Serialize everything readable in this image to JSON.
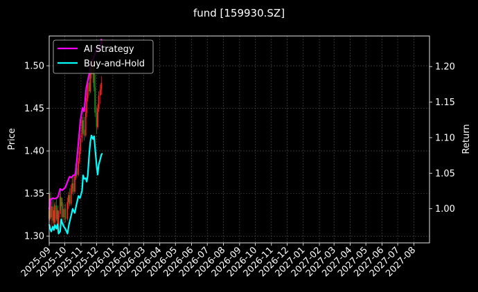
{
  "chart_data": {
    "type": "line",
    "title": "fund [159930.SZ]",
    "ylabel_left": "Price",
    "ylabel_right": "Return",
    "xlim": [
      "2025-09-01",
      "2027-08-31"
    ],
    "ylim_left": [
      1.292,
      1.535
    ],
    "ylim_right": [
      0.952,
      1.243
    ],
    "x_ticks": [
      "2025-09",
      "2025-10",
      "2025-11",
      "2025-12",
      "2026-01",
      "2026-02",
      "2026-03",
      "2026-04",
      "2026-05",
      "2026-06",
      "2026-07",
      "2026-08",
      "2026-09",
      "2026-10",
      "2026-11",
      "2026-12",
      "2027-01",
      "2027-02",
      "2027-03",
      "2027-04",
      "2027-05",
      "2027-06",
      "2027-07",
      "2027-08"
    ],
    "y_ticks_left": [
      "1.30",
      "1.35",
      "1.40",
      "1.45",
      "1.50"
    ],
    "y_ticks_right": [
      "1.00",
      "1.05",
      "1.10",
      "1.15",
      "1.20"
    ],
    "grid": true,
    "legend_position": "top-left",
    "background": "#000000",
    "colors": {
      "ai_strategy": "#ff00ff",
      "buy_and_hold": "#00ffff",
      "candle_up": "#ff2020",
      "candle_down": "#1f8f1f",
      "grid": "#555555"
    },
    "series": [
      {
        "name": "AI Strategy",
        "axis": "right",
        "color": "#ff00ff",
        "x": [
          "2025-09-01",
          "2025-09-04",
          "2025-09-08",
          "2025-09-11",
          "2025-09-15",
          "2025-09-18",
          "2025-09-22",
          "2025-09-26",
          "2025-10-02",
          "2025-10-06",
          "2025-10-10",
          "2025-10-14",
          "2025-10-17",
          "2025-10-21",
          "2025-10-24",
          "2025-10-28",
          "2025-10-31",
          "2025-11-04",
          "2025-11-07",
          "2025-11-11",
          "2025-11-14",
          "2025-11-18",
          "2025-11-21",
          "2025-11-25",
          "2025-11-28",
          "2025-12-01",
          "2025-12-03",
          "2025-12-05",
          "2025-12-08",
          "2025-12-10",
          "2025-12-12"
        ],
        "values": [
          0.999,
          1.013,
          1.015,
          1.014,
          1.015,
          1.017,
          1.028,
          1.026,
          1.03,
          1.038,
          1.045,
          1.044,
          1.047,
          1.048,
          1.068,
          1.1,
          1.125,
          1.142,
          1.137,
          1.17,
          1.18,
          1.194,
          1.207,
          1.212,
          1.218,
          1.226,
          1.228,
          1.221,
          1.224,
          1.238,
          1.232
        ]
      },
      {
        "name": "Buy-and-Hold",
        "axis": "right",
        "color": "#00ffff",
        "x": [
          "2025-09-01",
          "2025-09-03",
          "2025-09-05",
          "2025-09-08",
          "2025-09-10",
          "2025-09-12",
          "2025-09-15",
          "2025-09-17",
          "2025-09-19",
          "2025-09-22",
          "2025-09-24",
          "2025-09-26",
          "2025-09-29",
          "2025-10-02",
          "2025-10-06",
          "2025-10-09",
          "2025-10-13",
          "2025-10-16",
          "2025-10-20",
          "2025-10-23",
          "2025-10-27",
          "2025-10-30",
          "2025-11-03",
          "2025-11-05",
          "2025-11-07",
          "2025-11-10",
          "2025-11-12",
          "2025-11-14",
          "2025-11-17",
          "2025-11-19",
          "2025-11-21",
          "2025-11-24",
          "2025-11-26",
          "2025-11-28",
          "2025-12-01",
          "2025-12-03",
          "2025-12-05",
          "2025-12-08",
          "2025-12-10",
          "2025-12-12"
        ],
        "values": [
          0.978,
          0.972,
          0.968,
          0.975,
          0.97,
          0.977,
          0.972,
          0.978,
          0.965,
          0.968,
          0.985,
          0.98,
          0.975,
          0.972,
          0.965,
          0.978,
          0.99,
          1.0,
          0.994,
          1.005,
          1.018,
          1.015,
          1.025,
          1.047,
          1.042,
          1.043,
          1.038,
          1.047,
          1.08,
          1.095,
          1.103,
          1.098,
          1.102,
          1.085,
          1.06,
          1.048,
          1.062,
          1.07,
          1.076,
          1.078
        ]
      }
    ],
    "candlesticks": {
      "axis": "left",
      "ohlc": [
        [
          "2025-09-01",
          1.33,
          1.345,
          1.315,
          1.32
        ],
        [
          "2025-09-02",
          1.32,
          1.35,
          1.318,
          1.345
        ],
        [
          "2025-09-04",
          1.345,
          1.352,
          1.32,
          1.322
        ],
        [
          "2025-09-05",
          1.322,
          1.34,
          1.31,
          1.335
        ],
        [
          "2025-09-08",
          1.335,
          1.345,
          1.315,
          1.318
        ],
        [
          "2025-09-09",
          1.318,
          1.334,
          1.312,
          1.33
        ],
        [
          "2025-09-11",
          1.33,
          1.338,
          1.313,
          1.316
        ],
        [
          "2025-09-12",
          1.316,
          1.34,
          1.314,
          1.336
        ],
        [
          "2025-09-15",
          1.336,
          1.344,
          1.318,
          1.32
        ],
        [
          "2025-09-16",
          1.32,
          1.333,
          1.31,
          1.33
        ],
        [
          "2025-09-18",
          1.33,
          1.336,
          1.305,
          1.308
        ],
        [
          "2025-09-19",
          1.308,
          1.33,
          1.305,
          1.326
        ],
        [
          "2025-09-22",
          1.326,
          1.35,
          1.322,
          1.346
        ],
        [
          "2025-09-23",
          1.346,
          1.354,
          1.33,
          1.335
        ],
        [
          "2025-09-25",
          1.335,
          1.345,
          1.322,
          1.34
        ],
        [
          "2025-09-26",
          1.34,
          1.345,
          1.318,
          1.322
        ],
        [
          "2025-09-29",
          1.322,
          1.338,
          1.312,
          1.332
        ],
        [
          "2025-10-02",
          1.332,
          1.338,
          1.316,
          1.32
        ],
        [
          "2025-10-06",
          1.32,
          1.345,
          1.318,
          1.34
        ],
        [
          "2025-10-08",
          1.34,
          1.352,
          1.332,
          1.348
        ],
        [
          "2025-10-10",
          1.348,
          1.356,
          1.335,
          1.338
        ],
        [
          "2025-10-13",
          1.338,
          1.36,
          1.336,
          1.356
        ],
        [
          "2025-10-15",
          1.356,
          1.368,
          1.35,
          1.362
        ],
        [
          "2025-10-17",
          1.362,
          1.37,
          1.348,
          1.352
        ],
        [
          "2025-10-20",
          1.352,
          1.374,
          1.35,
          1.37
        ],
        [
          "2025-10-22",
          1.37,
          1.385,
          1.366,
          1.38
        ],
        [
          "2025-10-24",
          1.38,
          1.386,
          1.368,
          1.372
        ],
        [
          "2025-10-27",
          1.372,
          1.392,
          1.37,
          1.388
        ],
        [
          "2025-10-29",
          1.388,
          1.405,
          1.385,
          1.4
        ],
        [
          "2025-10-31",
          1.4,
          1.42,
          1.396,
          1.415
        ],
        [
          "2025-11-03",
          1.415,
          1.44,
          1.41,
          1.436
        ],
        [
          "2025-11-05",
          1.436,
          1.45,
          1.42,
          1.425
        ],
        [
          "2025-11-07",
          1.425,
          1.44,
          1.412,
          1.418
        ],
        [
          "2025-11-10",
          1.418,
          1.45,
          1.416,
          1.445
        ],
        [
          "2025-11-12",
          1.445,
          1.468,
          1.44,
          1.462
        ],
        [
          "2025-11-14",
          1.462,
          1.485,
          1.458,
          1.48
        ],
        [
          "2025-11-17",
          1.48,
          1.495,
          1.465,
          1.47
        ],
        [
          "2025-11-19",
          1.47,
          1.505,
          1.468,
          1.5
        ],
        [
          "2025-11-21",
          1.5,
          1.515,
          1.485,
          1.49
        ],
        [
          "2025-11-24",
          1.49,
          1.512,
          1.48,
          1.505
        ],
        [
          "2025-11-26",
          1.505,
          1.512,
          1.47,
          1.475
        ],
        [
          "2025-11-28",
          1.475,
          1.49,
          1.44,
          1.445
        ],
        [
          "2025-12-01",
          1.445,
          1.452,
          1.42,
          1.428
        ],
        [
          "2025-12-03",
          1.428,
          1.455,
          1.425,
          1.45
        ],
        [
          "2025-12-05",
          1.45,
          1.47,
          1.446,
          1.465
        ],
        [
          "2025-12-08",
          1.465,
          1.478,
          1.455,
          1.472
        ],
        [
          "2025-12-10",
          1.472,
          1.488,
          1.466,
          1.48
        ]
      ]
    },
    "legend": [
      {
        "label": "AI Strategy",
        "color": "#ff00ff"
      },
      {
        "label": "Buy-and-Hold",
        "color": "#00ffff"
      }
    ]
  }
}
